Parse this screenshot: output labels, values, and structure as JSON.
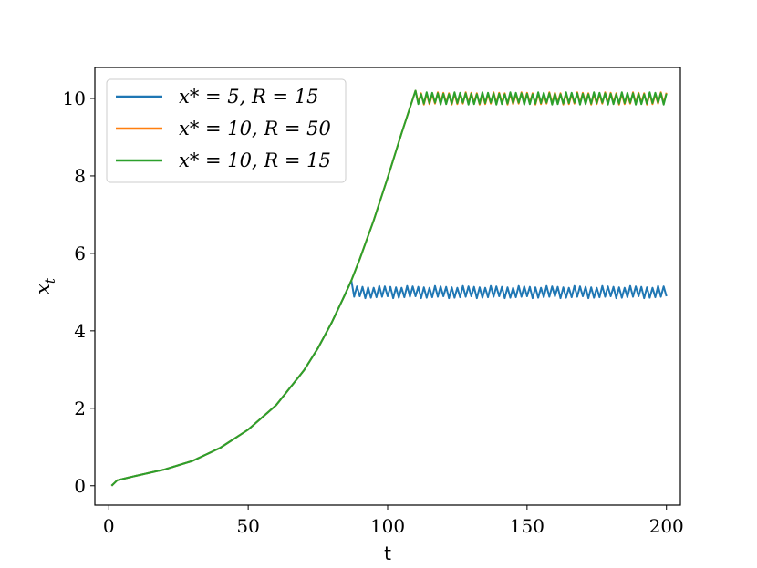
{
  "chart_data": {
    "type": "line",
    "xlabel": "t",
    "ylabel": "x_t",
    "ylabel_main": "x",
    "ylabel_sub": "t",
    "xlim": [
      -5,
      205
    ],
    "ylim": [
      -0.5,
      10.8
    ],
    "xticks": [
      0,
      50,
      100,
      150,
      200
    ],
    "yticks": [
      0,
      2,
      4,
      6,
      8,
      10
    ],
    "xtick_labels": [
      "0",
      "50",
      "100",
      "150",
      "200"
    ],
    "ytick_labels": [
      "0",
      "2",
      "4",
      "6",
      "8",
      "10"
    ],
    "grid": false,
    "legend_position": "top-left",
    "growth_curve": {
      "t": [
        1,
        3,
        10,
        20,
        30,
        40,
        50,
        60,
        70,
        75,
        80,
        85,
        87,
        90,
        95,
        100,
        105,
        110
      ],
      "x": [
        0.0,
        0.14,
        0.26,
        0.42,
        0.64,
        0.98,
        1.45,
        2.08,
        2.98,
        3.55,
        4.22,
        4.98,
        5.3,
        5.85,
        6.85,
        7.95,
        9.1,
        10.2
      ]
    },
    "oscillation": {
      "period": 2,
      "amplitude": 0.11
    },
    "series": [
      {
        "name": "x* = 5, R = 15",
        "legend_label": "x* = 5, R = 15",
        "color": "#1f77b4",
        "target": 5,
        "R": 15,
        "plateau_start": 87,
        "t_end": 200
      },
      {
        "name": "x* = 10, R = 50",
        "legend_label": "x* = 10, R = 50",
        "color": "#ff7f0e",
        "target": 10,
        "R": 50,
        "plateau_start": 110,
        "t_end": 200
      },
      {
        "name": "x* = 10, R = 15",
        "legend_label": "x* = 10, R = 15",
        "color": "#2ca02c",
        "target": 10,
        "R": 15,
        "plateau_start": 110,
        "t_end": 200
      }
    ]
  }
}
